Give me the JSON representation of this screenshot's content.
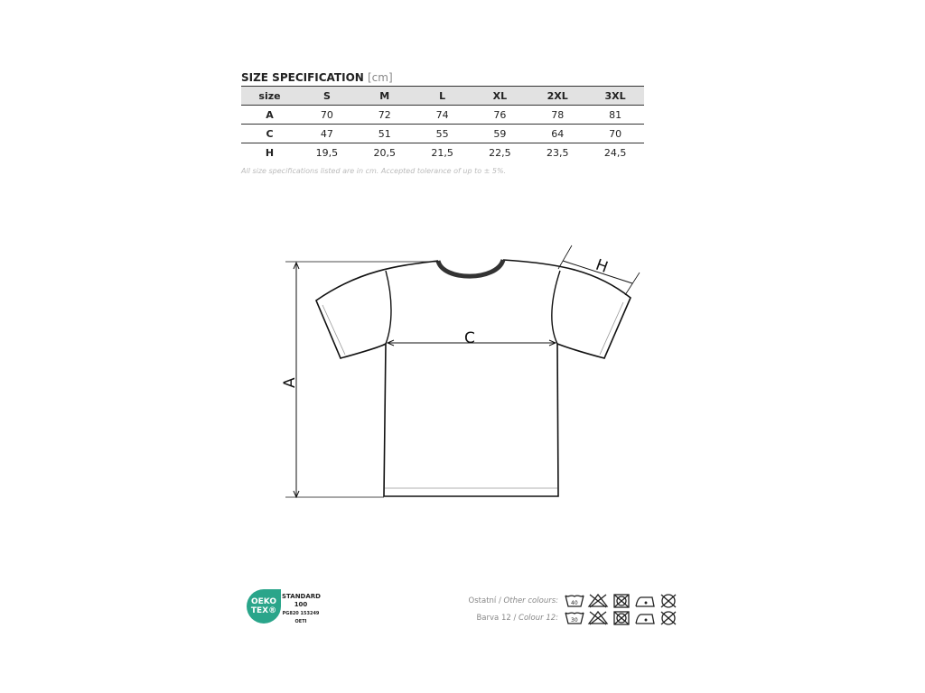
{
  "title": "SIZE SPECIFICATION",
  "title_unit": "[cm]",
  "table": {
    "header": [
      "size",
      "S",
      "M",
      "L",
      "XL",
      "2XL",
      "3XL"
    ],
    "rows": [
      [
        "A",
        "70",
        "72",
        "74",
        "76",
        "78",
        "81"
      ],
      [
        "C",
        "47",
        "51",
        "55",
        "59",
        "64",
        "70"
      ],
      [
        "H",
        "19,5",
        "20,5",
        "21,5",
        "22,5",
        "23,5",
        "24,5"
      ]
    ]
  },
  "note": "All size specifications listed are in cm. Accepted tolerance of up to ± 5%.",
  "diagram": {
    "label_a": "A",
    "label_c": "C",
    "label_h": "H"
  },
  "cert": {
    "logo_line1": "OEKO",
    "logo_line2": "TEX®",
    "standard": "STANDARD",
    "number": "100",
    "code": "PG820 153249",
    "institute": "OETI"
  },
  "care": [
    {
      "label": "Ostatní / ",
      "label_italic": "Other colours:",
      "wash_temp": "40"
    },
    {
      "label": "Barva 12 / ",
      "label_italic": "Colour 12:",
      "wash_temp": "30"
    }
  ],
  "icons": [
    "wash-tub-icon",
    "no-bleach-icon",
    "no-tumble-dry-icon",
    "iron-low-icon",
    "no-dry-clean-icon"
  ]
}
